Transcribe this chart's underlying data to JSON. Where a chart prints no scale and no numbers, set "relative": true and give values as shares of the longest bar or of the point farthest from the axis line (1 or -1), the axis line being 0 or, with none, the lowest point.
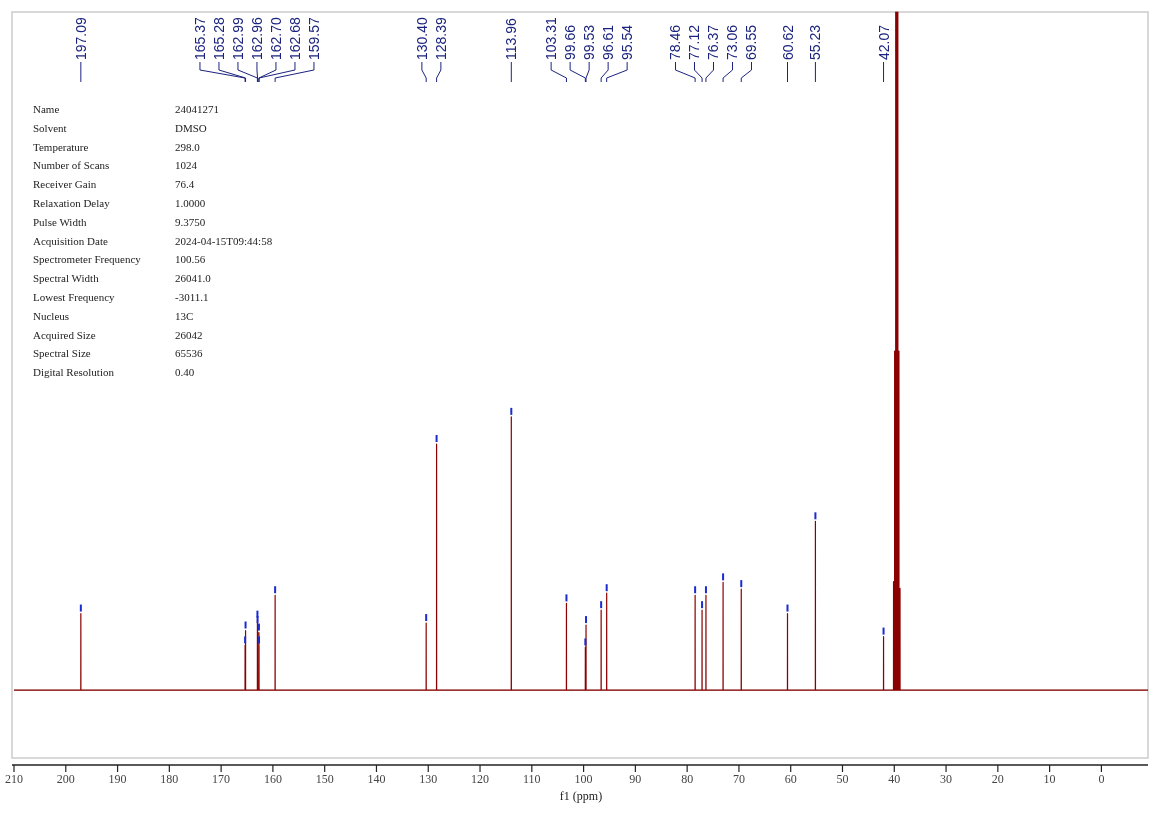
{
  "chart_data": {
    "type": "line",
    "relative": true,
    "xlabel": "f1 (ppm)",
    "color": "#8b0000",
    "xlim": [
      210,
      -9
    ],
    "xticks": [
      210,
      200,
      190,
      180,
      170,
      160,
      150,
      140,
      130,
      120,
      110,
      100,
      90,
      80,
      70,
      60,
      50,
      40,
      30,
      20,
      10,
      0
    ],
    "x": [
      210,
      197.1,
      197.09,
      197.08,
      165.38,
      165.37,
      165.36,
      165.29,
      165.28,
      165.27,
      163.0,
      162.99,
      162.98,
      162.97,
      162.96,
      162.95,
      162.71,
      162.7,
      162.69,
      162.69,
      162.68,
      162.67,
      159.58,
      159.57,
      159.56,
      130.41,
      130.4,
      130.39,
      128.4,
      128.39,
      128.38,
      113.97,
      113.96,
      113.95,
      103.32,
      103.31,
      103.3,
      99.67,
      99.66,
      99.65,
      99.54,
      99.53,
      99.52,
      96.62,
      96.61,
      96.6,
      95.55,
      95.54,
      95.53,
      78.47,
      78.46,
      78.45,
      77.13,
      77.12,
      77.11,
      76.38,
      76.37,
      76.36,
      73.07,
      73.06,
      73.05,
      69.56,
      69.55,
      69.54,
      60.63,
      60.62,
      60.61,
      55.24,
      55.23,
      55.22,
      42.08,
      42.07,
      42.06,
      40.15,
      40.14,
      40.13,
      39.94,
      39.93,
      39.92,
      39.73,
      39.72,
      39.71,
      39.53,
      39.52,
      39.51,
      39.32,
      39.31,
      39.3,
      39.11,
      39.1,
      39.09,
      38.9,
      38.89,
      38.88,
      -9
    ],
    "values": [
      0,
      0,
      0.113,
      0,
      0,
      0.066,
      0,
      0,
      0.088,
      0,
      0,
      0.104,
      0,
      0,
      0.096,
      0,
      0,
      0.085,
      0,
      0,
      0.066,
      0,
      0,
      0.14,
      0,
      0,
      0.099,
      0,
      0,
      0.363,
      0,
      0,
      0.403,
      0,
      0,
      0.128,
      0,
      0,
      0.063,
      0,
      0,
      0.096,
      0,
      0,
      0.118,
      0,
      0,
      0.143,
      0,
      0,
      0.14,
      0,
      0,
      0.118,
      0,
      0,
      0.14,
      0,
      0,
      0.159,
      0,
      0,
      0.149,
      0,
      0,
      0.113,
      0,
      0,
      0.249,
      0,
      0,
      0.079,
      0,
      0,
      0.16,
      0,
      0,
      0.5,
      0,
      0,
      1,
      0,
      0,
      1,
      0,
      0,
      1,
      0,
      0,
      0.5,
      0,
      0,
      0.15,
      0,
      0
    ],
    "annotations": [
      {
        "text": "197.09",
        "x": 197.09
      },
      {
        "text": "165.37",
        "x": 165.37
      },
      {
        "text": "165.28",
        "x": 165.28
      },
      {
        "text": "162.99",
        "x": 162.99
      },
      {
        "text": "162.96",
        "x": 162.96
      },
      {
        "text": "162.70",
        "x": 162.7
      },
      {
        "text": "162.68",
        "x": 162.68
      },
      {
        "text": "159.57",
        "x": 159.57
      },
      {
        "text": "130.40",
        "x": 130.4
      },
      {
        "text": "128.39",
        "x": 128.39
      },
      {
        "text": "113.96",
        "x": 113.96
      },
      {
        "text": "103.31",
        "x": 103.31
      },
      {
        "text": "99.66",
        "x": 99.66
      },
      {
        "text": "99.53",
        "x": 99.53
      },
      {
        "text": "96.61",
        "x": 96.61
      },
      {
        "text": "95.54",
        "x": 95.54
      },
      {
        "text": "78.46",
        "x": 78.46
      },
      {
        "text": "77.12",
        "x": 77.12
      },
      {
        "text": "76.37",
        "x": 76.37
      },
      {
        "text": "73.06",
        "x": 73.06
      },
      {
        "text": "69.55",
        "x": 69.55
      },
      {
        "text": "60.62",
        "x": 60.62
      },
      {
        "text": "55.23",
        "x": 55.23
      },
      {
        "text": "42.07",
        "x": 42.07
      },
      "Name",
      "24041271",
      "Solvent",
      "DMSO",
      "Temperature",
      "298.0",
      "Number of Scans",
      "1024",
      "Receiver Gain",
      "76.4",
      "Relaxation Delay",
      "1.0000",
      "Pulse Width",
      "9.3750",
      "Acquisition Date",
      "2024-04-15T09:44:58",
      "Spectrometer Frequency",
      "100.56",
      "Spectral Width",
      "26041.0",
      "Lowest Frequency",
      "-3011.1",
      "Nucleus",
      "13C",
      "Acquired Size",
      "26042",
      "Spectral Size",
      "65536",
      "Digital Resolution",
      "0.40"
    ]
  }
}
